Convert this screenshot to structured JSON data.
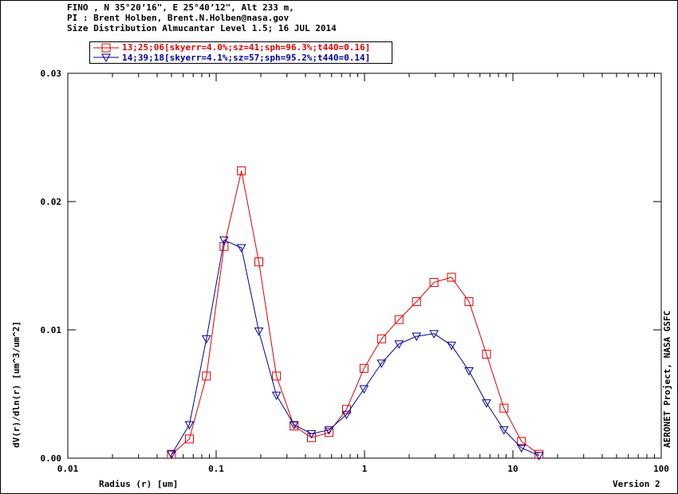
{
  "header": {
    "line1": "FINO , N 35°20’16\", E 25°40’12\", Alt 233 m,",
    "line2": "PI : Brent Holben, Brent.N.Holben@nasa.gov",
    "line3": "Size Distribution Almucantar Level 1.5; 16 JUL 2014"
  },
  "side_label": "AERONET Project, NASA GSFC",
  "version_label": "Version 2",
  "colors": {
    "series1": "#dd0000",
    "series2": "#000099"
  },
  "chart_data": {
    "type": "line",
    "xlabel": "Radius (r) [um]",
    "ylabel": "dV(r)/dln(r) [um^3/um^2]",
    "xscale": "log",
    "xlim": [
      0.01,
      100
    ],
    "ylim": [
      0,
      0.03
    ],
    "x_ticks": [
      0.01,
      0.1,
      1,
      10,
      100
    ],
    "x_tick_labels": [
      "0.01",
      "0.1",
      "1",
      "10",
      "100"
    ],
    "y_ticks": [
      0,
      0.01,
      0.02,
      0.03
    ],
    "y_tick_labels": [
      "0.00",
      "0.01",
      "0.02",
      "0.03"
    ],
    "legend_position": "top-left",
    "series": [
      {
        "name": "13;25;06[skyerr=4.0%;sz=41;sph=96.3%;t440=0.16]",
        "marker": "square",
        "x": [
          0.05,
          0.066,
          0.086,
          0.113,
          0.148,
          0.194,
          0.255,
          0.335,
          0.439,
          0.576,
          0.756,
          0.992,
          1.302,
          1.708,
          2.241,
          2.94,
          3.857,
          5.06,
          6.638,
          8.709,
          11.43,
          15.0
        ],
        "y": [
          0.0003,
          0.0015,
          0.0064,
          0.0165,
          0.0224,
          0.0153,
          0.0064,
          0.0025,
          0.0016,
          0.002,
          0.0038,
          0.007,
          0.0093,
          0.0108,
          0.0122,
          0.0137,
          0.0141,
          0.0122,
          0.0081,
          0.0039,
          0.0013,
          0.0003
        ]
      },
      {
        "name": "14;39;18[skyerr=4.1%;sz=57;sph=95.2%;t440=0.14]",
        "marker": "triangle-down",
        "x": [
          0.05,
          0.066,
          0.086,
          0.113,
          0.148,
          0.194,
          0.255,
          0.335,
          0.439,
          0.576,
          0.756,
          0.992,
          1.302,
          1.708,
          2.241,
          2.94,
          3.857,
          5.06,
          6.638,
          8.709,
          11.43,
          15.0
        ],
        "y": [
          0.0003,
          0.0026,
          0.0093,
          0.017,
          0.0164,
          0.0099,
          0.0049,
          0.0026,
          0.0019,
          0.0022,
          0.0034,
          0.0054,
          0.0074,
          0.0089,
          0.0095,
          0.0097,
          0.0088,
          0.0068,
          0.0043,
          0.0022,
          0.0008,
          0.0002
        ]
      }
    ]
  }
}
